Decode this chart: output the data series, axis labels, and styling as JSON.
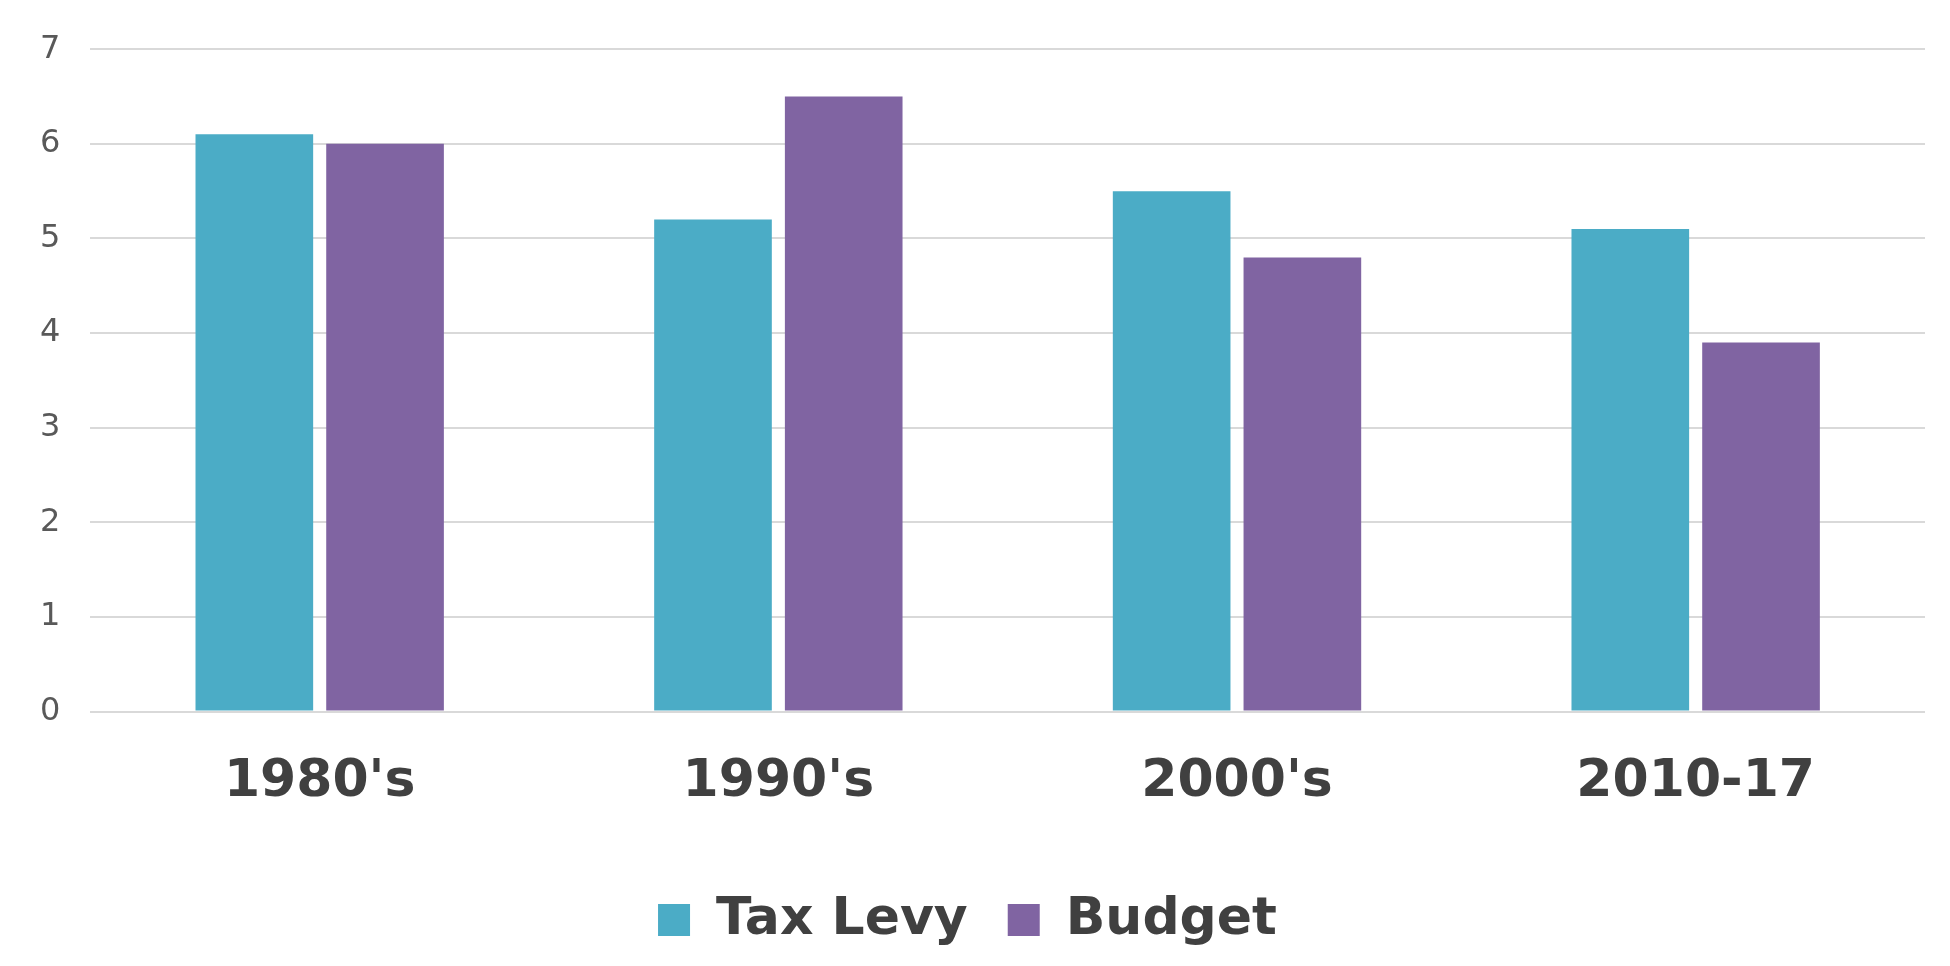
{
  "chart_data": {
    "type": "bar",
    "categories": [
      "1980's",
      "1990's",
      "2000's",
      "2010-17"
    ],
    "series": [
      {
        "name": "Tax Levy",
        "color": "#4bacc6",
        "values": [
          6.1,
          5.2,
          5.5,
          5.1
        ]
      },
      {
        "name": "Budget",
        "color": "#8064a2",
        "values": [
          6.0,
          6.5,
          4.8,
          3.9
        ]
      }
    ],
    "ylim": [
      0,
      7
    ],
    "yticks": [
      0,
      1,
      2,
      3,
      4,
      5,
      6,
      7
    ],
    "grid": "y",
    "legend": "bottom"
  }
}
